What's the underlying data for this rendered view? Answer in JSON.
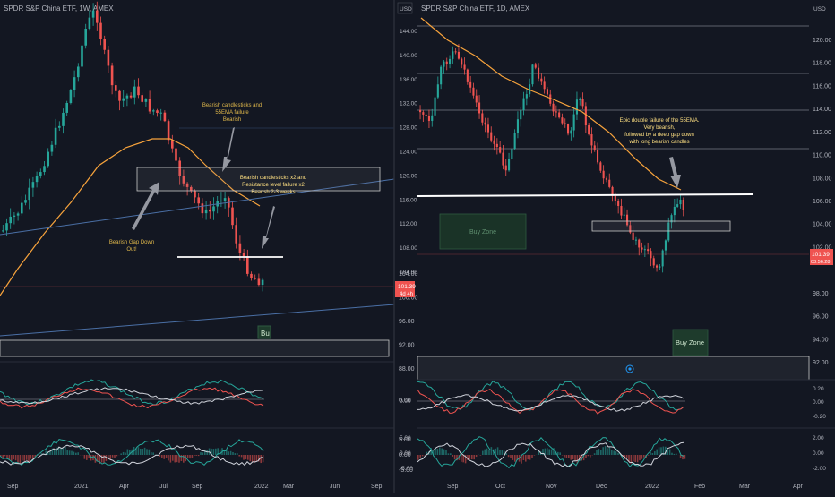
{
  "colors": {
    "background": "#131722",
    "up": "#26a69a",
    "down": "#ef5350",
    "ema": "#f7a33c",
    "trendline": "#4a6fa5",
    "zone_fill": "#1e3b2c",
    "zone_text": "#8fbf8f",
    "annotation": "#e0b84b",
    "last_price": "#ef5350",
    "axis_text": "#b2b5be"
  },
  "left_chart": {
    "symbol_title": "SPDR S&P China ETF, 1W, AMEX",
    "price_axis": [
      {
        "label": "104.00",
        "v": 104
      },
      {
        "label": "100.00",
        "v": 100
      },
      {
        "label": "96.00",
        "v": 96
      },
      {
        "label": "92.00",
        "v": 92
      },
      {
        "label": "88.00",
        "v": 88
      }
    ],
    "time_axis": [
      "Sep",
      "2021",
      "Apr",
      "Jul",
      "Sep",
      "2022",
      "Mar",
      "Jun",
      "Sep"
    ],
    "last_price": "101.39",
    "countdown": "4d 4h",
    "annotations": {
      "top": [
        "Bearish candlesticks and",
        "55EMA failure",
        "Bearish"
      ],
      "mid": [
        "Bearish candlesticks x2 and",
        "Resistance level failure x2",
        "Bearish 2-3 weeks"
      ],
      "low": [
        "Bearish Gap Down",
        "Out!"
      ]
    },
    "buy_label": "Bu"
  },
  "right_chart": {
    "symbol_title": "SPDR S&P China ETF, 1D, AMEX",
    "currency": "USD",
    "left_axis": [
      {
        "label": "144.00",
        "v": 144
      },
      {
        "label": "140.00",
        "v": 140
      },
      {
        "label": "136.00",
        "v": 136
      },
      {
        "label": "132.00",
        "v": 132
      },
      {
        "label": "128.00",
        "v": 128
      },
      {
        "label": "124.00",
        "v": 124
      },
      {
        "label": "120.00",
        "v": 120
      },
      {
        "label": "116.00",
        "v": 116
      },
      {
        "label": "112.00",
        "v": 112
      },
      {
        "label": "108.00",
        "v": 108
      },
      {
        "label": "104.00",
        "v": 104
      }
    ],
    "right_axis": [
      {
        "label": "120.00",
        "v": 120
      },
      {
        "label": "118.00",
        "v": 118
      },
      {
        "label": "116.00",
        "v": 116
      },
      {
        "label": "114.00",
        "v": 114
      },
      {
        "label": "112.00",
        "v": 112
      },
      {
        "label": "110.00",
        "v": 110
      },
      {
        "label": "108.00",
        "v": 108
      },
      {
        "label": "106.00",
        "v": 106
      },
      {
        "label": "104.00",
        "v": 104
      },
      {
        "label": "102.00",
        "v": 102
      },
      {
        "label": "98.00",
        "v": 98
      },
      {
        "label": "96.00",
        "v": 96
      },
      {
        "label": "94.00",
        "v": 94
      },
      {
        "label": "92.00",
        "v": 92
      }
    ],
    "time_axis": [
      "Sep",
      "Oct",
      "Nov",
      "Dec",
      "2022",
      "Feb",
      "Mar",
      "Apr"
    ],
    "last_price": "101.39",
    "countdown": "03:56:28",
    "annotation": [
      "Epic double failure of the 55EMA.",
      "Very bearish,",
      "followed by a deep gap down",
      "with long bearish candles"
    ],
    "buy_zone_left": "Buy Zone",
    "buy_zone_right": "Buy Zone"
  },
  "left_osc1_axis": [
    "0.00"
  ],
  "left_osc2_axis": [
    "5.00",
    "0.00",
    "-5.00"
  ],
  "right_osc1_axis": [
    "0.00"
  ],
  "right_osc1_right_axis": [
    "0.20",
    "0.00",
    "-0.20"
  ],
  "right_osc2_axis": [
    "5.00",
    "0.00",
    "-5.00"
  ],
  "right_osc2_right_axis": [
    "2.00",
    "0.00",
    "-2.00"
  ]
}
